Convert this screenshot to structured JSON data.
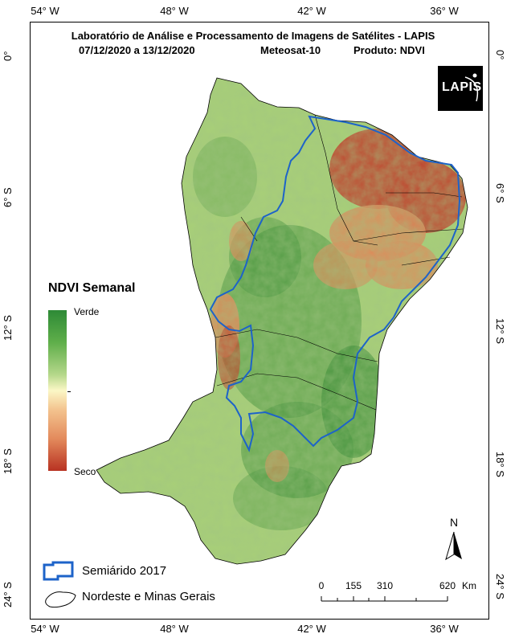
{
  "title": {
    "line1": "Laboratório de Análise e Processamento de Imagens de Satélites - LAPIS",
    "dates": "07/12/2020  a  13/12/2020",
    "satellite": "Meteosat-10",
    "product": "Produto: NDVI"
  },
  "logo_text": "LAPIS",
  "longitude_labels": [
    "54° W",
    "48° W",
    "42° W",
    "36° W"
  ],
  "latitude_labels": [
    "0°",
    "6° S",
    "12° S",
    "18° S",
    "24° S"
  ],
  "legend": {
    "title": "NDVI Semanal",
    "high_label": "Verde",
    "low_label": "Seco",
    "colors": [
      "#2d8a36",
      "#5fae4a",
      "#b4d78a",
      "#fbf7c6",
      "#f3c38e",
      "#e38a5c",
      "#b83222"
    ]
  },
  "boundary_legend": [
    {
      "label": "Semiárido 2017",
      "color": "#1d63c9"
    },
    {
      "label": "Nordeste e Minas Gerais",
      "color": "#000000"
    }
  ],
  "scale": {
    "ticks": [
      "0",
      "155",
      "310",
      "620"
    ],
    "unit": "Km"
  },
  "north_label": "N",
  "map_colors": {
    "green_dark": "#3f8f3a",
    "green_light": "#a8cf78",
    "dry_red": "#c0442e",
    "dry_orange": "#dd8a5a",
    "semiarid_outline": "#1d63c9"
  }
}
